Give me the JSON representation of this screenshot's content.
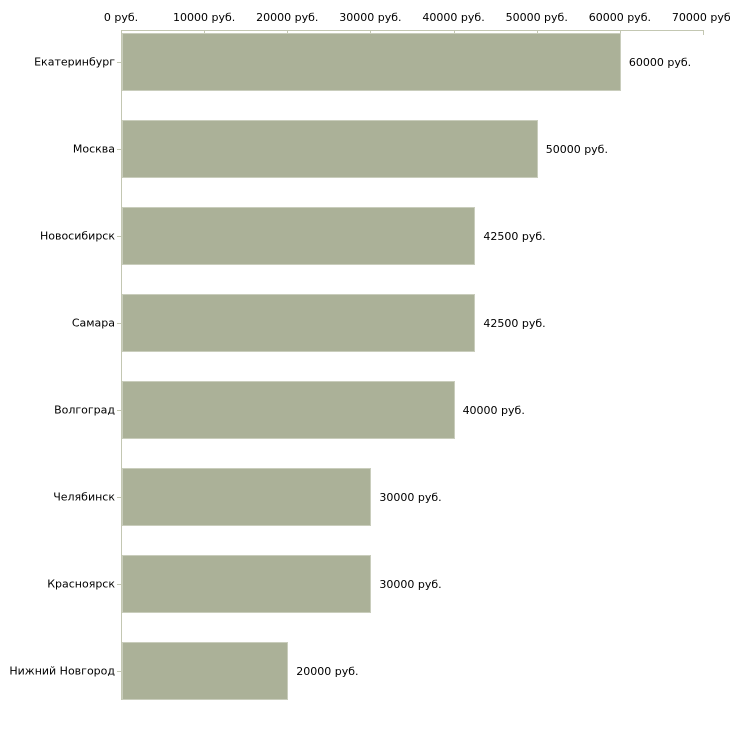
{
  "chart_data": {
    "type": "bar",
    "orientation": "horizontal",
    "title": "",
    "xlabel": "",
    "ylabel": "",
    "categories": [
      "Екатеринбург",
      "Москва",
      "Новосибирск",
      "Самара",
      "Волгоград",
      "Челябинск",
      "Красноярск",
      "Нижний Новгород"
    ],
    "values": [
      60000,
      50000,
      42500,
      42500,
      40000,
      30000,
      30000,
      20000
    ],
    "bar_value_labels": [
      "60000 руб.",
      "50000 руб.",
      "42500 руб.",
      "42500 руб.",
      "40000 руб.",
      "30000 руб.",
      "30000 руб.",
      "20000 руб."
    ],
    "x_ticks": [
      0,
      10000,
      20000,
      30000,
      40000,
      50000,
      60000,
      70000
    ],
    "x_tick_labels": [
      "0 руб.",
      "10000 руб.",
      "20000 руб.",
      "30000 руб.",
      "40000 руб.",
      "50000 руб.",
      "60000 руб.",
      "70000 руб."
    ],
    "xlim": [
      0,
      70000
    ],
    "axis_position": "top",
    "grid": false,
    "legend": null,
    "colors": {
      "bar_fill": "#abb198",
      "bar_border": "#c9cdbc",
      "axis_line": "#c3c7b2",
      "text": "#000000",
      "background": "#ffffff"
    }
  }
}
